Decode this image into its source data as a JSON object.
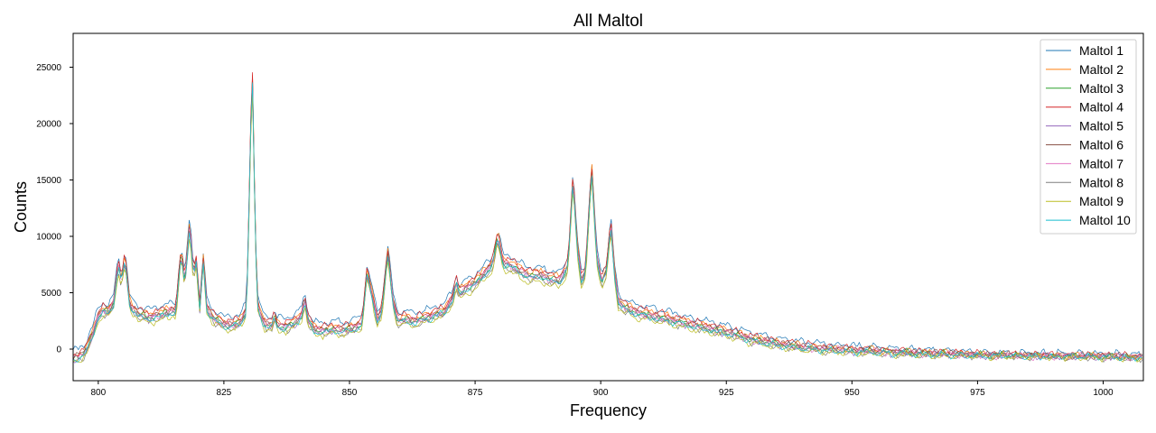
{
  "chart_data": {
    "type": "line",
    "title": "All Maltol",
    "xlabel": "Frequency",
    "ylabel": "Counts",
    "xlim": [
      795,
      1008
    ],
    "ylim": [
      -2800,
      28000
    ],
    "xticks": [
      800,
      825,
      850,
      875,
      900,
      925,
      950,
      975,
      1000
    ],
    "yticks": [
      0,
      5000,
      10000,
      15000,
      20000,
      25000
    ],
    "grid": false,
    "legend_position": "top-right",
    "base_profile": [
      [
        795,
        -800
      ],
      [
        797,
        -500
      ],
      [
        798,
        300
      ],
      [
        799,
        1500
      ],
      [
        800,
        3000
      ],
      [
        801,
        3400
      ],
      [
        802,
        3300
      ],
      [
        803,
        4000
      ],
      [
        804,
        7600
      ],
      [
        804.6,
        6000
      ],
      [
        805.3,
        8100
      ],
      [
        806.3,
        3800
      ],
      [
        808,
        3200
      ],
      [
        810,
        2800
      ],
      [
        812,
        3000
      ],
      [
        814,
        3300
      ],
      [
        815.5,
        3500
      ],
      [
        816.5,
        8700
      ],
      [
        817.2,
        5800
      ],
      [
        818.2,
        11200
      ],
      [
        818.9,
        6800
      ],
      [
        819.5,
        7800
      ],
      [
        820.2,
        3600
      ],
      [
        820.9,
        7900
      ],
      [
        821.6,
        3700
      ],
      [
        823,
        2700
      ],
      [
        825,
        2200
      ],
      [
        827,
        2200
      ],
      [
        828.5,
        2500
      ],
      [
        829.5,
        3500
      ],
      [
        830.2,
        16000
      ],
      [
        830.6,
        26300
      ],
      [
        831.0,
        16000
      ],
      [
        831.6,
        4000
      ],
      [
        833,
        2300
      ],
      [
        834.6,
        2100
      ],
      [
        835.1,
        3000
      ],
      [
        835.6,
        2100
      ],
      [
        837,
        2000
      ],
      [
        839,
        2300
      ],
      [
        840.6,
        3100
      ],
      [
        841.1,
        4600
      ],
      [
        841.7,
        2600
      ],
      [
        843,
        1700
      ],
      [
        845,
        1700
      ],
      [
        847,
        1800
      ],
      [
        849,
        1700
      ],
      [
        851,
        1900
      ],
      [
        852.5,
        2300
      ],
      [
        853.5,
        6800
      ],
      [
        854.5,
        4800
      ],
      [
        855.5,
        2600
      ],
      [
        856.5,
        3500
      ],
      [
        857.6,
        8600
      ],
      [
        858.6,
        4500
      ],
      [
        859.6,
        2500
      ],
      [
        861,
        2700
      ],
      [
        863,
        2500
      ],
      [
        865,
        2800
      ],
      [
        867,
        3100
      ],
      [
        869,
        3400
      ],
      [
        870.5,
        4500
      ],
      [
        871.2,
        6000
      ],
      [
        871.8,
        4900
      ],
      [
        873,
        5400
      ],
      [
        875,
        5900
      ],
      [
        877,
        6800
      ],
      [
        878.5,
        7600
      ],
      [
        879.5,
        10000
      ],
      [
        880.5,
        7800
      ],
      [
        882,
        7500
      ],
      [
        884,
        6900
      ],
      [
        886,
        6500
      ],
      [
        888,
        6600
      ],
      [
        890,
        6200
      ],
      [
        892,
        6200
      ],
      [
        893.5,
        7500
      ],
      [
        894.5,
        15200
      ],
      [
        895.3,
        9200
      ],
      [
        896.2,
        6000
      ],
      [
        897,
        7000
      ],
      [
        898.2,
        16000
      ],
      [
        899.2,
        8200
      ],
      [
        900.2,
        6000
      ],
      [
        901.2,
        7000
      ],
      [
        902,
        11200
      ],
      [
        902.8,
        6500
      ],
      [
        903.5,
        4200
      ],
      [
        905,
        3600
      ],
      [
        908,
        3200
      ],
      [
        911,
        2900
      ],
      [
        915,
        2500
      ],
      [
        918,
        2200
      ],
      [
        921,
        1900
      ],
      [
        925,
        1500
      ],
      [
        930,
        900
      ],
      [
        935,
        500
      ],
      [
        940,
        200
      ],
      [
        945,
        0
      ],
      [
        950,
        -100
      ],
      [
        955,
        -200
      ],
      [
        960,
        -300
      ],
      [
        965,
        -400
      ],
      [
        970,
        -450
      ],
      [
        975,
        -500
      ],
      [
        980,
        -550
      ],
      [
        985,
        -600
      ],
      [
        990,
        -600
      ],
      [
        995,
        -650
      ],
      [
        1000,
        -650
      ],
      [
        1005,
        -700
      ],
      [
        1008,
        -700
      ]
    ],
    "series": [
      {
        "name": "Maltol 1",
        "color": "#1f77b4",
        "scale": 1.0,
        "offset": 700
      },
      {
        "name": "Maltol 2",
        "color": "#ff7f0e",
        "scale": 1.02,
        "offset": 200
      },
      {
        "name": "Maltol 3",
        "color": "#2ca02c",
        "scale": 0.99,
        "offset": 0
      },
      {
        "name": "Maltol 4",
        "color": "#d62728",
        "scale": 1.01,
        "offset": 350
      },
      {
        "name": "Maltol 5",
        "color": "#9467bd",
        "scale": 1.0,
        "offset": -150
      },
      {
        "name": "Maltol 6",
        "color": "#8c564b",
        "scale": 0.98,
        "offset": 100
      },
      {
        "name": "Maltol 7",
        "color": "#e377c2",
        "scale": 1.0,
        "offset": -50
      },
      {
        "name": "Maltol 8",
        "color": "#7f7f7f",
        "scale": 0.99,
        "offset": -300
      },
      {
        "name": "Maltol 9",
        "color": "#bcbd22",
        "scale": 0.97,
        "offset": -400
      },
      {
        "name": "Maltol 10",
        "color": "#17becf",
        "scale": 1.0,
        "offset": -200
      }
    ]
  }
}
